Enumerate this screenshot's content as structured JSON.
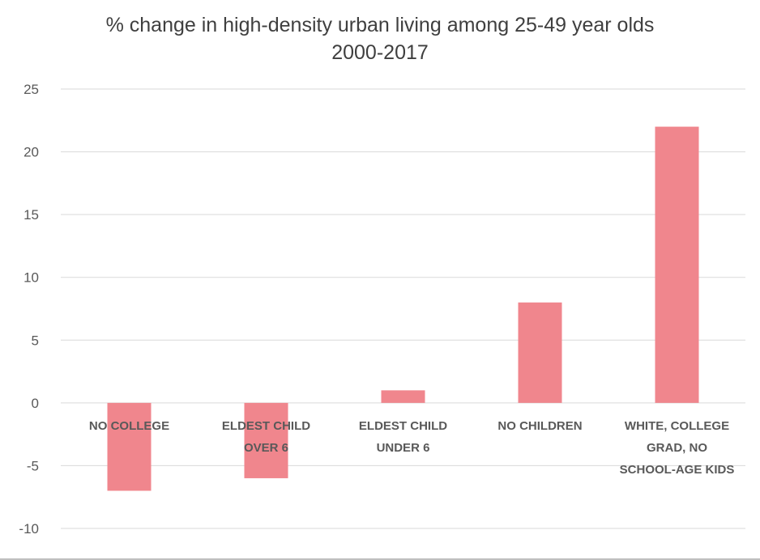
{
  "chart_data": {
    "type": "bar",
    "title_line1": "% change in high-density urban living among 25-49 year olds",
    "title_line2": "2000-2017",
    "xlabel": "",
    "ylabel": "",
    "categories": [
      [
        "NO COLLEGE"
      ],
      [
        "ELDEST CHILD",
        "OVER 6"
      ],
      [
        "ELDEST CHILD",
        "UNDER 6"
      ],
      [
        "NO CHILDREN"
      ],
      [
        "WHITE, COLLEGE",
        "GRAD, NO",
        "SCHOOL-AGE KIDS"
      ]
    ],
    "values": [
      -7,
      -6,
      1,
      8,
      22
    ],
    "ylim": [
      -10,
      25
    ],
    "yticks": [
      25,
      20,
      15,
      10,
      5,
      0,
      -5,
      -10
    ],
    "grid": true,
    "legend": "none",
    "colors": {
      "bar": "#f0868d",
      "grid": "#d9d9d9",
      "text": "#595959",
      "title": "#3f3f3f"
    }
  }
}
